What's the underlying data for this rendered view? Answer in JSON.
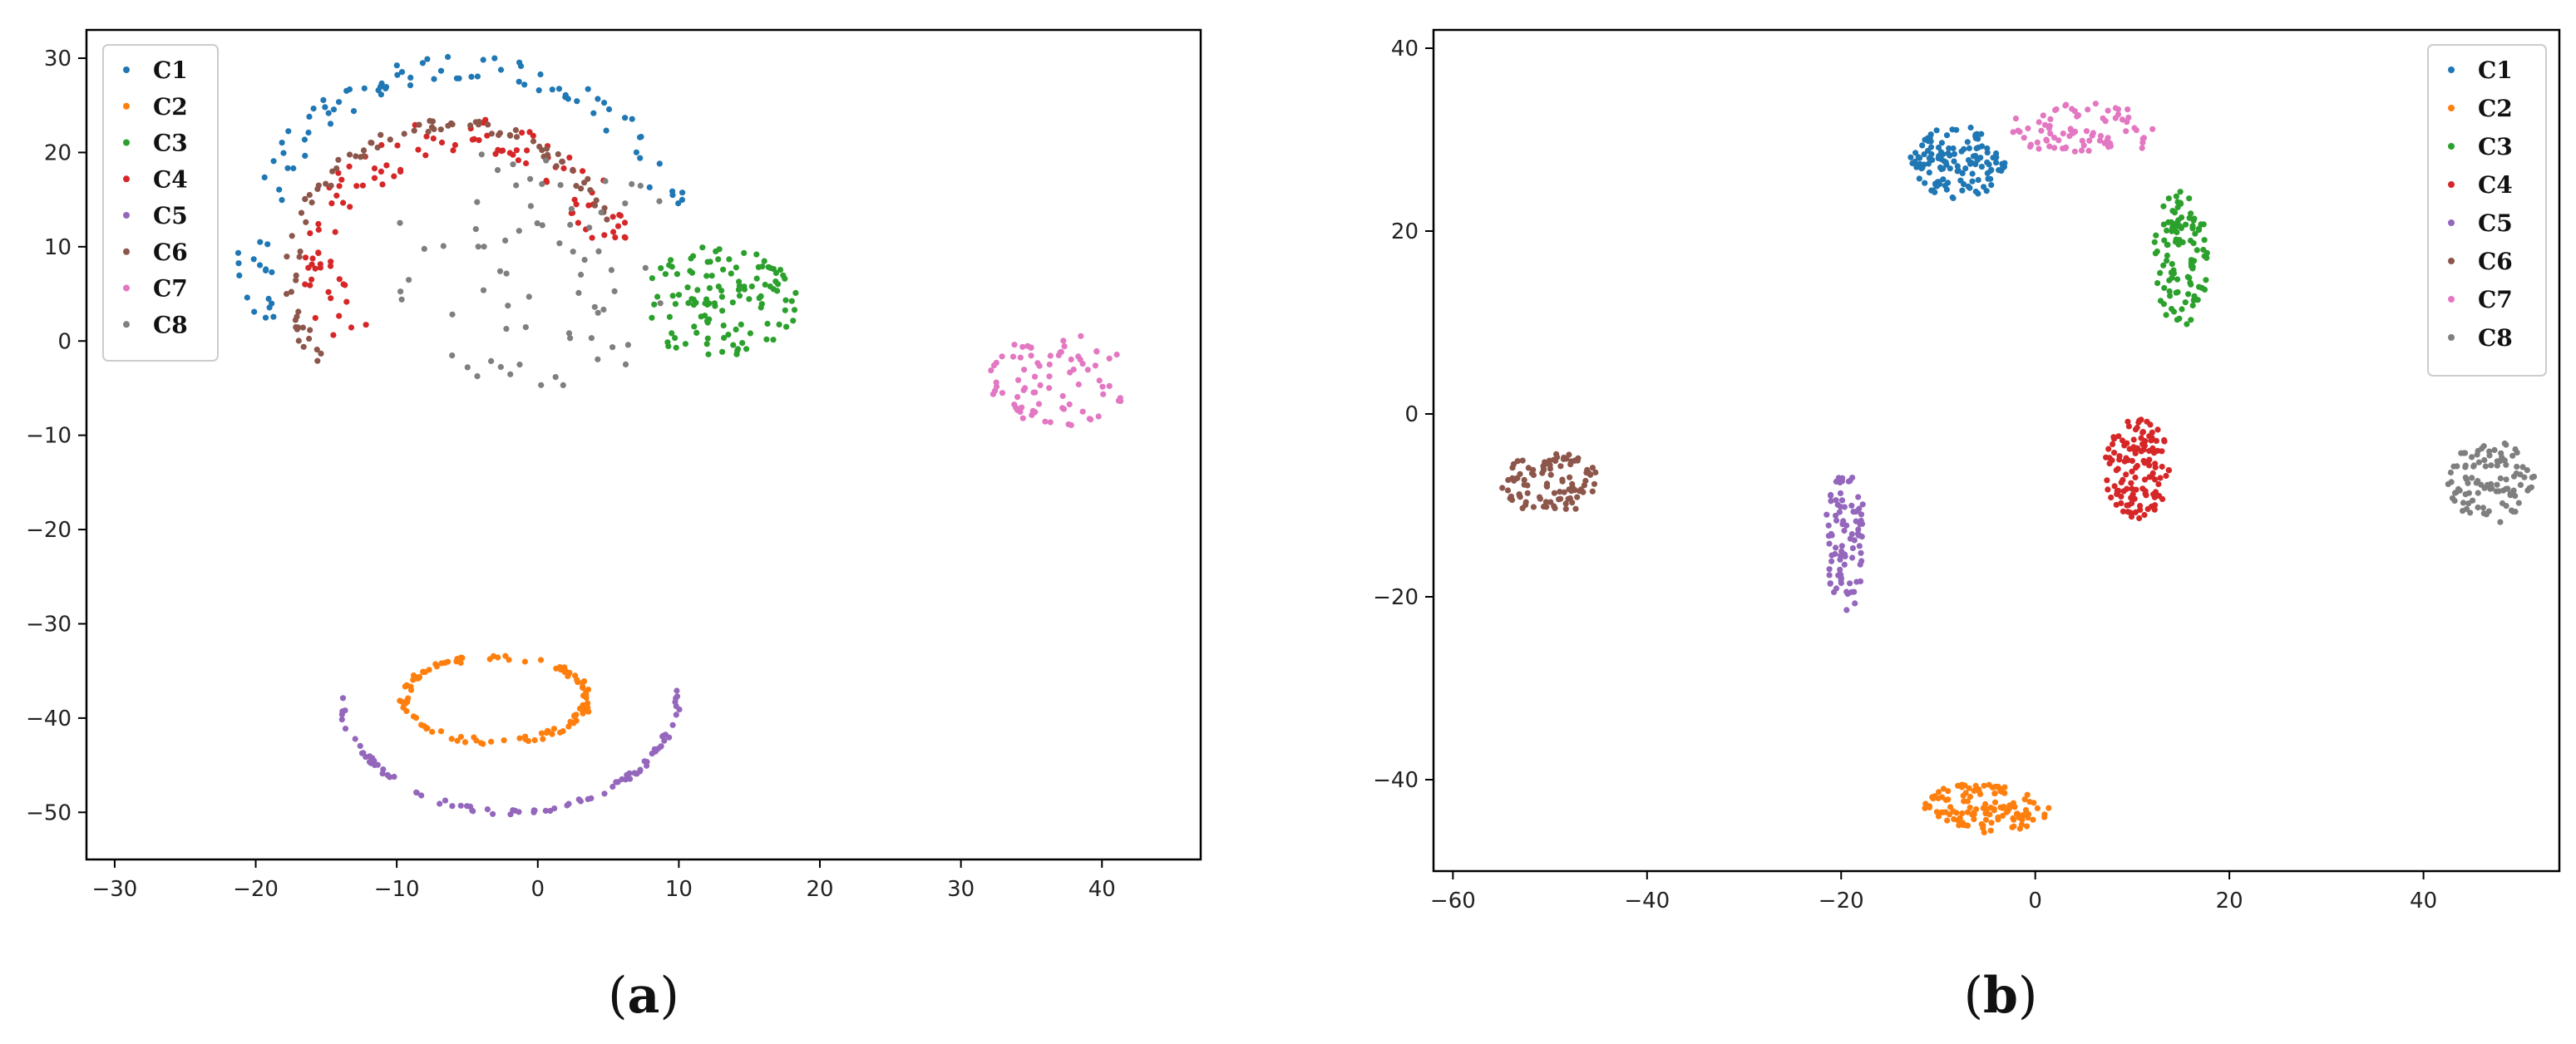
{
  "colors": {
    "C1": "#1f77b4",
    "C2": "#ff7f0e",
    "C3": "#2ca02c",
    "C4": "#d62728",
    "C5": "#9467bd",
    "C6": "#8c564b",
    "C7": "#e377c2",
    "C8": "#7f7f7f"
  },
  "chart_data": [
    {
      "type": "scatter",
      "panel_label": {
        "open": "(",
        "letter": "a",
        "close": ")"
      },
      "xlim": [
        -32,
        47
      ],
      "ylim": [
        -55,
        33
      ],
      "xticks": [
        -30,
        -20,
        -10,
        0,
        10,
        20,
        30,
        40
      ],
      "yticks": [
        -50,
        -40,
        -30,
        -20,
        -10,
        0,
        10,
        20,
        30
      ],
      "legend_placement": "upper-left",
      "grid": false,
      "series": [
        {
          "name": "C1",
          "shape": "arc",
          "center": [
            -5,
            9
          ],
          "radius": [
            15,
            20
          ],
          "angle": [
            15,
            200
          ],
          "n": 95,
          "spread": 1.3
        },
        {
          "name": "C2",
          "shape": "ring",
          "center": [
            -3,
            -38
          ],
          "radius": [
            6.5,
            4.5
          ],
          "angle": [
            0,
            360
          ],
          "n": 120,
          "spread": 0.35
        },
        {
          "name": "C3",
          "shape": "blob",
          "center": [
            13,
            4
          ],
          "radius": [
            5.5,
            6.5
          ],
          "n": 120
        },
        {
          "name": "C4",
          "shape": "arc",
          "center": [
            -5,
            8
          ],
          "radius": [
            10,
            14
          ],
          "angle": [
            10,
            215
          ],
          "n": 110,
          "spread": 1.8
        },
        {
          "name": "C5",
          "shape": "arc",
          "center": [
            -2,
            -37
          ],
          "radius": [
            12,
            13
          ],
          "angle": [
            180,
            360
          ],
          "n": 90,
          "spread": 0.25
        },
        {
          "name": "C6",
          "shape": "arc",
          "center": [
            -6,
            7
          ],
          "radius": [
            11.5,
            16
          ],
          "angle": [
            20,
            215
          ],
          "n": 90,
          "spread": 0.6
        },
        {
          "name": "C7",
          "shape": "blob",
          "center": [
            37,
            -4
          ],
          "radius": [
            5,
            5
          ],
          "n": 80
        },
        {
          "name": "C8",
          "shape": "blob",
          "center": [
            0,
            8
          ],
          "radius": [
            11,
            13
          ],
          "n": 70
        }
      ]
    },
    {
      "type": "scatter",
      "panel_label": {
        "open": "(",
        "letter": "b",
        "close": ")"
      },
      "xlim": [
        -62,
        54
      ],
      "ylim": [
        -50,
        42
      ],
      "xticks": [
        -60,
        -40,
        -20,
        0,
        20,
        40
      ],
      "yticks": [
        -40,
        -20,
        0,
        20,
        40
      ],
      "legend_placement": "upper-right",
      "grid": false,
      "series": [
        {
          "name": "C1",
          "shape": "blob",
          "center": [
            -8,
            27.5
          ],
          "radius": [
            5,
            4
          ],
          "n": 130
        },
        {
          "name": "C2",
          "shape": "blob",
          "center": [
            -5,
            -43
          ],
          "radius": [
            6.5,
            2.8
          ],
          "n": 120
        },
        {
          "name": "C3",
          "shape": "blob",
          "center": [
            15,
            17
          ],
          "radius": [
            2.8,
            7.5
          ],
          "n": 110
        },
        {
          "name": "C4",
          "shape": "blob",
          "center": [
            10.5,
            -6
          ],
          "radius": [
            3.5,
            5.5
          ],
          "n": 130
        },
        {
          "name": "C5",
          "shape": "blob",
          "center": [
            -19.5,
            -14
          ],
          "radius": [
            2.2,
            7.5
          ],
          "n": 90
        },
        {
          "name": "C6",
          "shape": "blob",
          "center": [
            -50,
            -7.5
          ],
          "radius": [
            5,
            3.5
          ],
          "n": 100
        },
        {
          "name": "C7",
          "shape": "blob",
          "center": [
            5,
            31
          ],
          "radius": [
            8,
            3
          ],
          "n": 80
        },
        {
          "name": "C8",
          "shape": "blob",
          "center": [
            47,
            -7.5
          ],
          "radius": [
            4.5,
            4.5
          ],
          "n": 100
        }
      ]
    }
  ]
}
